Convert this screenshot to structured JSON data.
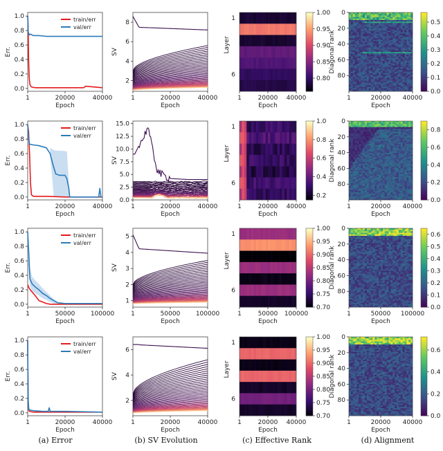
{
  "captions": [
    "(a) Error",
    "(b) SV Evolution",
    "(c) Effective Rank",
    "(d) Alignment"
  ],
  "colors": {
    "train": "#e41a1c",
    "val": "#2b7bba",
    "band": "#9ec3e6",
    "sv_dark": "#3b0f4f",
    "sv_mid": "#b83a6e",
    "sv_light": "#fbd9a6",
    "align_low": "#3b0a6b",
    "align_high": "#f0e442"
  },
  "chart_data": [
    {
      "type": "line",
      "panel": "error",
      "row": 1,
      "xlabel": "Epoch",
      "ylabel": "Err.",
      "xticks": [
        1,
        20000,
        40000
      ],
      "xtick_labels": [
        "1",
        "20000",
        "40000"
      ],
      "yticks": [
        0.0,
        0.2,
        0.4,
        0.6,
        0.8,
        1.0
      ],
      "ytick_labels": [
        "0.0",
        "0.2",
        "0.4",
        "0.6",
        "0.8",
        "1.0"
      ],
      "xlim": [
        1,
        40000
      ],
      "ylim": [
        -0.04,
        1.05
      ],
      "legend": [
        "train/err",
        "val/err"
      ],
      "series": [
        {
          "name": "train/err",
          "x": [
            1,
            120,
            300,
            500,
            800,
            1200,
            2000,
            4000,
            10000,
            20000,
            30000,
            31000,
            40000
          ],
          "y": [
            1.0,
            0.95,
            0.75,
            0.4,
            0.15,
            0.05,
            0.02,
            0.01,
            0.01,
            0.01,
            0.01,
            0.03,
            0.01
          ]
        },
        {
          "name": "val/err",
          "x": [
            1,
            300,
            800,
            1500,
            3000,
            6000,
            10000,
            20000,
            30000,
            40000
          ],
          "y": [
            1.0,
            0.78,
            0.74,
            0.75,
            0.73,
            0.73,
            0.72,
            0.72,
            0.72,
            0.72
          ]
        }
      ]
    },
    {
      "type": "line",
      "panel": "sv",
      "row": 1,
      "xlabel": "Epoch",
      "ylabel": "SV",
      "xticks": [
        1,
        20000,
        40000
      ],
      "xtick_labels": [
        "1",
        "20000",
        "40000"
      ],
      "yticks": [
        2,
        4,
        6,
        8
      ],
      "ytick_labels": [
        "2",
        "4",
        "6",
        "8"
      ],
      "xlim": [
        1,
        40000
      ],
      "ylim": [
        0.9,
        9.0
      ],
      "n_lines": 40,
      "top_start": 8.6,
      "top_end": 7.2,
      "upper_start": 3.0,
      "upper_end": 5.6,
      "lower_start": 1.0,
      "lower_end": 1.3
    },
    {
      "type": "heatmap",
      "panel": "effective_rank",
      "row": 1,
      "xlabel": "Epoch",
      "ylabel": "Layer",
      "xticks": [
        1,
        20000,
        40000
      ],
      "xtick_labels": [
        "1",
        "20000",
        "40000"
      ],
      "ytick_labels": [
        "1",
        "6"
      ],
      "cbar_ticks": [
        0.8,
        0.85,
        0.9,
        0.95,
        1.0
      ],
      "cbar_labels": [
        "0.80",
        "0.85",
        "0.90",
        "0.95",
        "1.00"
      ],
      "vmin": 0.76,
      "vmax": 1.0,
      "layers": [
        0.78,
        0.93,
        0.78,
        0.83,
        0.82,
        0.8,
        0.79
      ]
    },
    {
      "type": "heatmap",
      "panel": "alignment",
      "row": 1,
      "xlabel": "Epoch",
      "ylabel": "Diagonal rank",
      "xticks": [
        1,
        20000,
        40000
      ],
      "xtick_labels": [
        "1",
        "20000",
        "40000"
      ],
      "ytick_labels": [
        "0",
        "20",
        "40",
        "60",
        "80"
      ],
      "cbar_ticks": [
        0.0,
        0.1,
        0.2,
        0.3,
        0.4,
        0.5
      ],
      "cbar_labels": [
        "0.0",
        "0.1",
        "0.2",
        "0.3",
        "0.4",
        "0.5"
      ],
      "vmax": 0.57
    },
    {
      "type": "line",
      "panel": "error",
      "row": 2,
      "xlabel": "Epoch",
      "ylabel": "Err.",
      "xticks": [
        1,
        20000,
        40000
      ],
      "xtick_labels": [
        "1",
        "20000",
        "40000"
      ],
      "yticks": [
        0.0,
        0.2,
        0.4,
        0.6,
        0.8,
        1.0
      ],
      "ytick_labels": [
        "0.0",
        "0.2",
        "0.4",
        "0.6",
        "0.8",
        "1.0"
      ],
      "xlim": [
        1,
        40000
      ],
      "ylim": [
        -0.04,
        1.05
      ],
      "legend": [
        "train/err",
        "val/err"
      ],
      "series": [
        {
          "name": "train/err",
          "x": [
            1,
            500,
            1000,
            1500,
            2000,
            3000,
            6000,
            10000,
            20000,
            30000,
            40000
          ],
          "y": [
            1.0,
            0.9,
            0.6,
            0.2,
            0.03,
            0.01,
            0.01,
            0.01,
            0.0,
            0.0,
            0.0
          ]
        },
        {
          "name": "val/err",
          "x": [
            1,
            500,
            1000,
            3000,
            6000,
            10000,
            12000,
            13500,
            15000,
            17000,
            19000,
            20000,
            21000,
            22000,
            22500,
            38000,
            38600,
            39200,
            40000
          ],
          "y": [
            1.0,
            0.8,
            0.73,
            0.72,
            0.71,
            0.68,
            0.6,
            0.45,
            0.32,
            0.3,
            0.3,
            0.3,
            0.25,
            0.12,
            0.0,
            0.0,
            0.12,
            0.0,
            0.0
          ]
        }
      ],
      "band": {
        "x": [
          12000,
          14000,
          16000,
          18000,
          21000,
          22500
        ],
        "upper": [
          0.68,
          0.65,
          0.64,
          0.64,
          0.63,
          0.0
        ],
        "lower": [
          0.58,
          0.0,
          0.0,
          0.0,
          0.0,
          0.0
        ]
      }
    },
    {
      "type": "line",
      "panel": "sv",
      "row": 2,
      "xlabel": "Epoch",
      "ylabel": "SV",
      "xticks": [
        1,
        20000,
        40000
      ],
      "xtick_labels": [
        "1",
        "20000",
        "40000"
      ],
      "yticks": [
        0.0,
        2.5,
        5.0,
        7.5,
        10.0,
        12.5,
        15.0
      ],
      "ytick_labels": [
        "0.0",
        "2.5",
        "5.0",
        "7.5",
        "10.0",
        "12.5",
        "15.0"
      ],
      "xlim": [
        1,
        40000
      ],
      "ylim": [
        0,
        15.5
      ],
      "n_lines": 36,
      "top_series": {
        "x": [
          1,
          1000,
          3000,
          6000,
          8000,
          9000,
          11000,
          13000,
          15000,
          20000,
          30000,
          40000
        ],
        "y": [
          9.0,
          9.0,
          10.5,
          12.5,
          14.5,
          12.5,
          9.0,
          6.0,
          5.0,
          4.2,
          4.0,
          4.0
        ]
      }
    },
    {
      "type": "heatmap",
      "panel": "effective_rank",
      "row": 2,
      "xlabel": "Epoch",
      "ylabel": "Layer",
      "xticks": [
        1,
        20000,
        40000
      ],
      "xtick_labels": [
        "1",
        "20000",
        "40000"
      ],
      "ytick_labels": [
        "1",
        "6"
      ],
      "cbar_ticks": [
        0.2,
        0.4,
        0.6,
        0.8,
        1.0
      ],
      "cbar_labels": [
        "0.2",
        "0.4",
        "0.6",
        "0.8",
        "1.0"
      ],
      "vmin": 0.15,
      "vmax": 1.0,
      "layers": [
        0.3,
        0.35,
        0.28,
        0.3,
        0.25,
        0.32,
        0.3
      ]
    },
    {
      "type": "heatmap",
      "panel": "alignment",
      "row": 2,
      "xlabel": "Epoch",
      "ylabel": "Diagonal rank",
      "xticks": [
        1,
        20000,
        40000
      ],
      "xtick_labels": [
        "1",
        "20000",
        "40000"
      ],
      "ytick_labels": [
        "0",
        "20",
        "40",
        "60",
        "80"
      ],
      "cbar_ticks": [
        0.0,
        0.2,
        0.4,
        0.6,
        0.8
      ],
      "cbar_labels": [
        "0.0",
        "0.2",
        "0.4",
        "0.6",
        "0.8"
      ],
      "vmax": 0.9
    },
    {
      "type": "line",
      "panel": "error",
      "row": 3,
      "xlabel": "Epoch",
      "ylabel": "Err.",
      "xticks": [
        1,
        50000,
        100000
      ],
      "xtick_labels": [
        "1",
        "50000",
        "100000"
      ],
      "yticks": [
        0.0,
        0.2,
        0.4,
        0.6,
        0.8,
        1.0
      ],
      "ytick_labels": [
        "0.0",
        "0.2",
        "0.4",
        "0.6",
        "0.8",
        "1.0"
      ],
      "xlim": [
        1,
        100000
      ],
      "ylim": [
        -0.04,
        1.05
      ],
      "legend": [
        "train/err",
        "val/err"
      ],
      "series": [
        {
          "name": "train/err",
          "x": [
            1,
            800,
            2000,
            5000,
            10000,
            15000,
            20000,
            25000,
            30000,
            35000,
            40000,
            60000,
            100000
          ],
          "y": [
            0.27,
            0.25,
            0.22,
            0.18,
            0.12,
            0.05,
            0.03,
            0.01,
            0.0,
            0.0,
            0.0,
            0.0,
            0.0
          ]
        },
        {
          "name": "val/err",
          "x": [
            1,
            1500,
            3000,
            6000,
            10000,
            15000,
            20000,
            25000,
            30000,
            35000,
            40000,
            50000,
            100000
          ],
          "y": [
            1.0,
            0.7,
            0.35,
            0.28,
            0.24,
            0.2,
            0.15,
            0.12,
            0.08,
            0.05,
            0.02,
            0.01,
            0.01
          ]
        }
      ],
      "band": {
        "x": [
          1,
          3000,
          6000,
          10000,
          15000,
          20000,
          25000,
          30000,
          35000,
          40000
        ],
        "upper": [
          1.0,
          0.5,
          0.38,
          0.33,
          0.28,
          0.22,
          0.17,
          0.12,
          0.07,
          0.03
        ],
        "lower": [
          0.6,
          0.25,
          0.18,
          0.15,
          0.12,
          0.08,
          0.06,
          0.03,
          0.01,
          0.0
        ]
      }
    },
    {
      "type": "line",
      "panel": "sv",
      "row": 3,
      "xlabel": "Epoch",
      "ylabel": "SV",
      "xticks": [
        1,
        50000,
        100000
      ],
      "xtick_labels": [
        "1",
        "50000",
        "100000"
      ],
      "yticks": [
        1,
        2,
        3,
        4,
        5
      ],
      "ytick_labels": [
        "1",
        "2",
        "3",
        "4",
        "5"
      ],
      "xlim": [
        1,
        100000
      ],
      "ylim": [
        0.6,
        5.5
      ],
      "n_lines": 40,
      "top_start": 5.1,
      "top_end": 3.95,
      "upper_start": 2.0,
      "upper_end": 3.5,
      "lower_start": 0.8,
      "lower_end": 0.9
    },
    {
      "type": "heatmap",
      "panel": "effective_rank",
      "row": 3,
      "xlabel": "Epoch",
      "ylabel": "Layer",
      "xticks": [
        1,
        50000,
        100000
      ],
      "xtick_labels": [
        "1",
        "50000",
        "100000"
      ],
      "ytick_labels": [
        "1",
        "6"
      ],
      "cbar_ticks": [
        0.7,
        0.75,
        0.8,
        0.85,
        0.9,
        0.95,
        1.0
      ],
      "cbar_labels": [
        "0.70",
        "0.75",
        "0.80",
        "0.85",
        "0.90",
        "0.95",
        "1.00"
      ],
      "vmin": 0.7,
      "vmax": 1.0,
      "layers": [
        0.83,
        0.93,
        0.7,
        0.83,
        0.71,
        0.83,
        0.72
      ]
    },
    {
      "type": "heatmap",
      "panel": "alignment",
      "row": 3,
      "xlabel": "Epoch",
      "ylabel": "Diagonal rank",
      "xticks": [
        1,
        50000,
        100000
      ],
      "xtick_labels": [
        "1",
        "50000",
        "100000"
      ],
      "ytick_labels": [
        "0",
        "20",
        "40",
        "60",
        "80"
      ],
      "cbar_ticks": [
        0.0,
        0.1,
        0.2,
        0.3,
        0.4,
        0.5,
        0.6
      ],
      "cbar_labels": [
        "0.0",
        "0.1",
        "0.2",
        "0.3",
        "0.4",
        "0.5",
        "0.6"
      ],
      "vmax": 0.65
    },
    {
      "type": "line",
      "panel": "error",
      "row": 4,
      "xlabel": "Epoch",
      "ylabel": "Err.",
      "xticks": [
        1,
        20000,
        40000
      ],
      "xtick_labels": [
        "1",
        "20000",
        "40000"
      ],
      "yticks": [
        0.0,
        0.2,
        0.4,
        0.6,
        0.8,
        1.0
      ],
      "ytick_labels": [
        "0.0",
        "0.2",
        "0.4",
        "0.6",
        "0.8",
        "1.0"
      ],
      "xlim": [
        1,
        40000
      ],
      "ylim": [
        -0.04,
        1.05
      ],
      "legend": [
        "train/err",
        "val/err"
      ],
      "series": [
        {
          "name": "train/err",
          "x": [
            1,
            100,
            300,
            600,
            1000,
            3000,
            10000,
            20000,
            40000
          ],
          "y": [
            1.0,
            0.6,
            0.15,
            0.03,
            0.02,
            0.01,
            0.01,
            0.01,
            0.01
          ]
        },
        {
          "name": "val/err",
          "x": [
            1,
            100,
            300,
            600,
            1000,
            3000,
            8000,
            11000,
            11500,
            12000,
            20000,
            40000
          ],
          "y": [
            1.0,
            0.6,
            0.15,
            0.05,
            0.04,
            0.03,
            0.02,
            0.02,
            0.07,
            0.02,
            0.02,
            0.01
          ]
        }
      ]
    },
    {
      "type": "line",
      "panel": "sv",
      "row": 4,
      "xlabel": "Epoch",
      "ylabel": "SV",
      "xticks": [
        1,
        20000,
        40000
      ],
      "xtick_labels": [
        "1",
        "20000",
        "40000"
      ],
      "yticks": [
        2,
        4,
        6
      ],
      "ytick_labels": [
        "2",
        "4",
        "6"
      ],
      "xlim": [
        1,
        40000
      ],
      "ylim": [
        0.8,
        7.0
      ],
      "n_lines": 40,
      "top_start": 6.4,
      "top_end": 6.1,
      "upper_start": 2.5,
      "upper_end": 5.2,
      "lower_start": 1.0,
      "lower_end": 1.2
    },
    {
      "type": "heatmap",
      "panel": "effective_rank",
      "row": 4,
      "xlabel": "Epoch",
      "ylabel": "Layer",
      "xticks": [
        1,
        20000,
        40000
      ],
      "xtick_labels": [
        "1",
        "20000",
        "40000"
      ],
      "ytick_labels": [
        "1",
        "6"
      ],
      "cbar_ticks": [
        0.7,
        0.75,
        0.8,
        0.85,
        0.9,
        0.95,
        1.0
      ],
      "cbar_labels": [
        "0.70",
        "0.75",
        "0.80",
        "0.85",
        "0.90",
        "0.95",
        "1.00"
      ],
      "vmin": 0.7,
      "vmax": 1.0,
      "layers": [
        0.71,
        0.9,
        0.71,
        0.9,
        0.72,
        0.8,
        0.72
      ]
    },
    {
      "type": "heatmap",
      "panel": "alignment",
      "row": 4,
      "xlabel": "Epoch",
      "ylabel": "Diagonal rank",
      "xticks": [
        1,
        20000,
        40000
      ],
      "xtick_labels": [
        "1",
        "20000",
        "40000"
      ],
      "ytick_labels": [
        "0",
        "20",
        "40",
        "60",
        "80"
      ],
      "cbar_ticks": [
        0.0,
        0.2,
        0.4,
        0.6
      ],
      "cbar_labels": [
        "0.0",
        "0.2",
        "0.4",
        "0.6"
      ],
      "vmax": 0.72
    }
  ]
}
